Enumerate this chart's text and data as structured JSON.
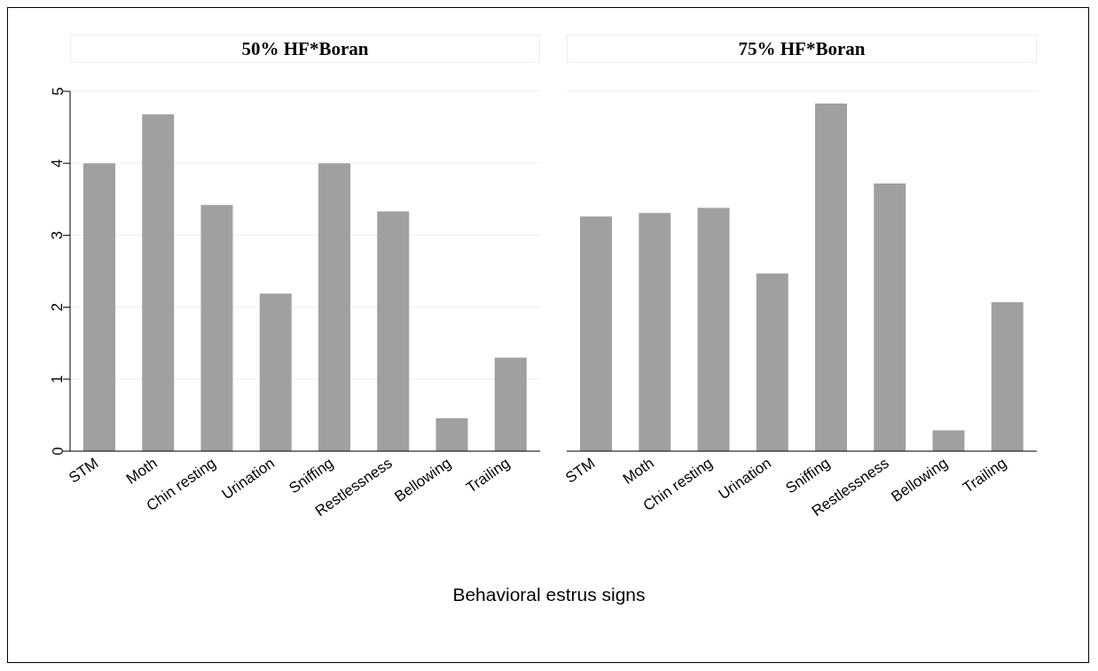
{
  "chart_data": [
    {
      "type": "bar",
      "title": "50% HF*Boran",
      "xlabel": "Behavioral estrus signs",
      "categories": [
        "STM",
        "Moth",
        "Chin resting",
        "Urination",
        "Sniffing",
        "Restlessness",
        "Bellowing",
        "Trailing"
      ],
      "values": [
        4.0,
        4.68,
        3.42,
        2.19,
        4.0,
        3.33,
        0.46,
        1.3
      ],
      "color": "#a0a0a0",
      "ylim": [
        0,
        5
      ],
      "yticks": [
        0,
        1,
        2,
        3,
        4,
        5
      ],
      "grid": "y"
    },
    {
      "type": "bar",
      "title": "75% HF*Boran",
      "categories": [
        "STM",
        "Moth",
        "Chin resting",
        "Urination",
        "Sniffing",
        "Restlessness",
        "Bellowing",
        "Trailing"
      ],
      "values": [
        3.26,
        3.31,
        3.38,
        2.47,
        4.83,
        3.72,
        0.29,
        2.07
      ],
      "color": "#a0a0a0",
      "ylim": [
        0,
        5
      ],
      "yticks": [
        0,
        1,
        2,
        3,
        4,
        5
      ],
      "grid": "y",
      "tick_labels": "x"
    }
  ]
}
